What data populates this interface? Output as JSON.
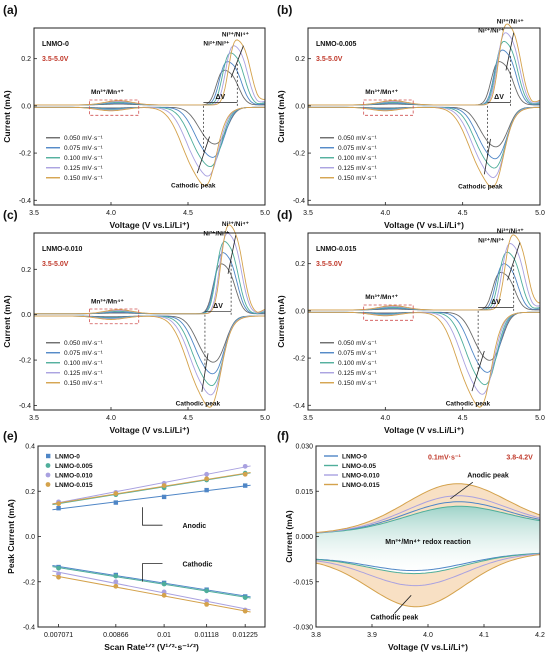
{
  "colors": {
    "s1": "#6b6b6b",
    "s2": "#4f86c6",
    "s3": "#4fae9b",
    "s4": "#a9a1e0",
    "s5": "#d4a24c",
    "red_label": "#c0392b",
    "box_dash": "#d05050"
  },
  "cv_legend": [
    "0.050 mV·s⁻¹",
    "0.075 mV·s⁻¹",
    "0.100 mV·s⁻¹",
    "0.125 mV·s⁻¹",
    "0.150 mV·s⁻¹"
  ],
  "chart_data": [
    {
      "panel": "(a)",
      "type": "line",
      "sample": "LNMO-0",
      "window": "3.5-5.0V",
      "xlabel": "Voltage (V vs.Li/Li⁺)",
      "ylabel": "Current (mA)",
      "xlim": [
        3.5,
        5.0
      ],
      "ylim": [
        -0.42,
        0.33
      ],
      "xticks": [
        "3.5",
        "4.0",
        "4.5",
        "5.0"
      ],
      "yticks": [
        "-0.4",
        "-0.2",
        "0.0",
        "0.2"
      ],
      "annotations": {
        "mn": "Mn³⁺/Mn⁴⁺",
        "ni1": "Ni²⁺/Ni³⁺",
        "ni2": "Ni³⁺/Ni⁴⁺",
        "dv": "ΔV",
        "cathodic": "Cathodic peak"
      },
      "scan_rates": [
        0.05,
        0.075,
        0.1,
        0.125,
        0.15
      ],
      "anodic_peak_V": [
        4.78,
        4.8,
        4.82,
        4.84,
        4.86
      ],
      "anodic_peak_mA": [
        0.12,
        0.15,
        0.18,
        0.205,
        0.225
      ],
      "cathodic_peak_V": [
        4.64,
        4.62,
        4.6,
        4.58,
        4.56
      ],
      "cathodic_peak_mA": [
        -0.13,
        -0.175,
        -0.205,
        -0.235,
        -0.265
      ]
    },
    {
      "panel": "(b)",
      "type": "line",
      "sample": "LNMO-0.005",
      "window": "3.5-5.0V",
      "xlabel": "Voltage (V vs.Li/Li⁺)",
      "ylabel": "Current (mA)",
      "xlim": [
        3.5,
        5.0
      ],
      "ylim": [
        -0.42,
        0.33
      ],
      "xticks": [
        "3.5",
        "4.0",
        "4.5",
        "5.0"
      ],
      "yticks": [
        "-0.4",
        "-0.2",
        "0.0",
        "0.2"
      ],
      "annotations": {
        "mn": "Mn³⁺/Mn⁴⁺",
        "ni1": "Ni²⁺/Ni³⁺",
        "ni2": "Ni³⁺/Ni⁴⁺",
        "dv": "ΔV",
        "cathodic": "Cathodic peak"
      },
      "scan_rates": [
        0.05,
        0.075,
        0.1,
        0.125,
        0.15
      ],
      "anodic_peak_V": [
        4.78,
        4.8,
        4.81,
        4.82,
        4.83
      ],
      "anodic_peak_mA": [
        0.15,
        0.19,
        0.22,
        0.25,
        0.28
      ],
      "cathodic_peak_V": [
        4.68,
        4.67,
        4.66,
        4.65,
        4.64
      ],
      "cathodic_peak_mA": [
        -0.14,
        -0.18,
        -0.21,
        -0.24,
        -0.27
      ]
    },
    {
      "panel": "(c)",
      "type": "line",
      "sample": "LNMO-0.010",
      "window": "3.5-5.0V",
      "xlabel": "Voltage (V vs.Li/Li⁺)",
      "ylabel": "Current (mA)",
      "xlim": [
        3.5,
        5.0
      ],
      "ylim": [
        -0.42,
        0.36
      ],
      "xticks": [
        "3.5",
        "4.0",
        "4.5",
        "5.0"
      ],
      "yticks": [
        "-0.4",
        "-0.2",
        "0.0",
        "0.2"
      ],
      "annotations": {
        "mn": "Mn³⁺/Mn⁴⁺",
        "ni1": "Ni²⁺/Ni³⁺",
        "ni2": "Ni³⁺/Ni⁴⁺",
        "dv": "ΔV",
        "cathodic": "Cathodic peak"
      },
      "scan_rates": [
        0.05,
        0.075,
        0.1,
        0.125,
        0.15
      ],
      "anodic_peak_V": [
        4.76,
        4.77,
        4.78,
        4.8,
        4.81
      ],
      "anodic_peak_mA": [
        0.18,
        0.22,
        0.26,
        0.29,
        0.32
      ],
      "cathodic_peak_V": [
        4.63,
        4.62,
        4.61,
        4.6,
        4.59
      ],
      "cathodic_peak_mA": [
        -0.17,
        -0.21,
        -0.25,
        -0.28,
        -0.32
      ]
    },
    {
      "panel": "(d)",
      "type": "line",
      "sample": "LNMO-0.015",
      "window": "3.5-5.0V",
      "xlabel": "Voltage (V vs.Li/Li⁺)",
      "ylabel": "Current (mA)",
      "xlim": [
        3.5,
        5.0
      ],
      "ylim": [
        -0.42,
        0.33
      ],
      "xticks": [
        "3.5",
        "4.0",
        "4.5",
        "5.0"
      ],
      "yticks": [
        "-0.4",
        "-0.2",
        "0.0",
        "0.2"
      ],
      "annotations": {
        "mn": "Mn³⁺/Mn⁴⁺",
        "ni1": "Ni²⁺/Ni³⁺",
        "ni2": "Ni³⁺/Ni⁴⁺",
        "dv": "ΔV",
        "cathodic": "Cathodic peak"
      },
      "scan_rates": [
        0.05,
        0.075,
        0.1,
        0.125,
        0.15
      ],
      "anodic_peak_V": [
        4.79,
        4.81,
        4.83,
        4.85,
        4.87
      ],
      "anodic_peak_mA": [
        0.13,
        0.16,
        0.2,
        0.23,
        0.26
      ],
      "cathodic_peak_V": [
        4.64,
        4.62,
        4.6,
        4.58,
        4.56
      ],
      "cathodic_peak_mA": [
        -0.17,
        -0.21,
        -0.25,
        -0.28,
        -0.32
      ]
    },
    {
      "panel": "(e)",
      "type": "scatter",
      "xlabel": "Scan Rate¹ᐟ² (V¹ᐟ²·s⁻¹ᐟ²)",
      "ylabel": "Peak Current (mA)",
      "x_categories": [
        "0.007071",
        "0.00866",
        "0.01",
        "0.01118",
        "0.01225"
      ],
      "x": [
        0.007071,
        0.00866,
        0.01,
        0.01118,
        0.01225
      ],
      "xlim": [
        0.0065,
        0.0128
      ],
      "ylim": [
        -0.4,
        0.4
      ],
      "yticks": [
        "-0.4",
        "-0.2",
        "0.0",
        "0.2",
        "0.4"
      ],
      "annotations": {
        "anodic": "Anodic",
        "cathodic": "Cathodic"
      },
      "legend_position": "top-left",
      "series": [
        {
          "name": "LNMO-0",
          "marker": "square",
          "anodic": [
            0.125,
            0.15,
            0.175,
            0.205,
            0.225
          ],
          "cathodic": [
            -0.135,
            -0.17,
            -0.205,
            -0.235,
            -0.265
          ]
        },
        {
          "name": "LNMO-0.005",
          "marker": "circle",
          "anodic": [
            0.148,
            0.185,
            0.215,
            0.25,
            0.28
          ],
          "cathodic": [
            -0.14,
            -0.175,
            -0.21,
            -0.24,
            -0.27
          ]
        },
        {
          "name": "LNMO-0.010",
          "marker": "circle",
          "anodic": [
            0.153,
            0.195,
            0.235,
            0.275,
            0.31
          ],
          "cathodic": [
            -0.165,
            -0.2,
            -0.245,
            -0.285,
            -0.325
          ]
        },
        {
          "name": "LNMO-0.015",
          "marker": "circle",
          "anodic": [
            0.145,
            0.19,
            0.225,
            0.255,
            0.275
          ],
          "cathodic": [
            -0.18,
            -0.22,
            -0.26,
            -0.3,
            -0.33
          ]
        }
      ]
    },
    {
      "panel": "(f)",
      "type": "area",
      "xlabel": "Voltage (V vs.Li/Li⁺)",
      "ylabel": "Current (mA)",
      "xlim": [
        3.8,
        4.2
      ],
      "ylim": [
        -0.03,
        0.03
      ],
      "xticks": [
        "3.8",
        "3.9",
        "4.0",
        "4.1",
        "4.2"
      ],
      "yticks": [
        "-0.030",
        "-0.015",
        "0.000",
        "0.015",
        "0.030"
      ],
      "rate": "0.1mV·s⁻¹",
      "window": "3.8-4.2V",
      "annotations": {
        "anodic": "Anodic peak",
        "redox": "Mn³⁺/Mn⁴⁺ redox reaction",
        "cathodic": "Cathodic peak"
      },
      "legend_position": "top-left",
      "series": [
        {
          "name": "LNMO-0",
          "anodic_peak_mA": 0.011,
          "cathodic_peak_mA": -0.012
        },
        {
          "name": "LNMO-0.05",
          "anodic_peak_mA": 0.0095,
          "cathodic_peak_mA": -0.013
        },
        {
          "name": "LNMO-0.010",
          "anodic_peak_mA": 0.013,
          "cathodic_peak_mA": -0.017
        },
        {
          "name": "LNMO-0.015",
          "anodic_peak_mA": 0.017,
          "cathodic_peak_mA": -0.024
        }
      ]
    }
  ]
}
